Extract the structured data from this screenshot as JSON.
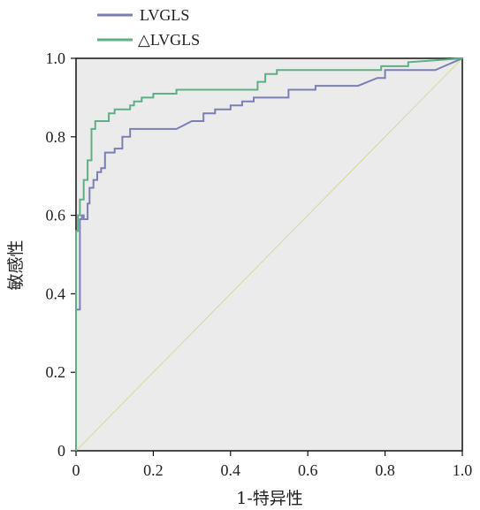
{
  "chart_data": {
    "type": "line",
    "xlabel": "1-特异性",
    "ylabel": "敏感性",
    "xlim": [
      0,
      1
    ],
    "ylim": [
      0,
      1
    ],
    "x_ticks": [
      "0",
      "0.2",
      "0.4",
      "0.6",
      "0.8",
      "1.0"
    ],
    "y_ticks": [
      "0",
      "0.2",
      "0.4",
      "0.6",
      "0.8",
      "1.0"
    ],
    "grid": false,
    "legend_position": "top-left",
    "background_color": "#ebebeb",
    "reference_line": {
      "x": [
        0,
        1
      ],
      "y": [
        0,
        1
      ],
      "color": "#d9d8a0"
    },
    "series": [
      {
        "name": "LVGLS",
        "color": "#7b7fb3",
        "x": [
          0,
          0,
          0.01,
          0.01,
          0.015,
          0.015,
          0.02,
          0.02,
          0.03,
          0.03,
          0.035,
          0.035,
          0.045,
          0.045,
          0.055,
          0.055,
          0.065,
          0.065,
          0.075,
          0.075,
          0.1,
          0.1,
          0.12,
          0.12,
          0.14,
          0.14,
          0.26,
          0.3,
          0.33,
          0.33,
          0.36,
          0.36,
          0.4,
          0.4,
          0.43,
          0.43,
          0.46,
          0.46,
          0.55,
          0.55,
          0.62,
          0.62,
          0.73,
          0.78,
          0.8,
          0.8,
          0.93,
          1.0
        ],
        "y": [
          0,
          0.36,
          0.36,
          0.59,
          0.59,
          0.6,
          0.6,
          0.59,
          0.59,
          0.63,
          0.63,
          0.67,
          0.67,
          0.69,
          0.69,
          0.71,
          0.71,
          0.72,
          0.72,
          0.76,
          0.76,
          0.77,
          0.77,
          0.8,
          0.8,
          0.82,
          0.82,
          0.84,
          0.84,
          0.86,
          0.86,
          0.87,
          0.87,
          0.88,
          0.88,
          0.89,
          0.89,
          0.9,
          0.9,
          0.92,
          0.92,
          0.93,
          0.93,
          0.95,
          0.95,
          0.97,
          0.97,
          1.0
        ]
      },
      {
        "name": "△LVGLS",
        "color": "#5faf86",
        "x": [
          0,
          0,
          0.005,
          0.005,
          0.01,
          0.01,
          0.02,
          0.02,
          0.03,
          0.03,
          0.04,
          0.04,
          0.05,
          0.05,
          0.085,
          0.085,
          0.1,
          0.1,
          0.14,
          0.14,
          0.15,
          0.15,
          0.17,
          0.17,
          0.2,
          0.2,
          0.26,
          0.26,
          0.47,
          0.47,
          0.49,
          0.49,
          0.52,
          0.52,
          0.79,
          0.79,
          0.86,
          0.86,
          1.0
        ],
        "y": [
          0,
          0.56,
          0.56,
          0.6,
          0.6,
          0.64,
          0.64,
          0.69,
          0.69,
          0.74,
          0.74,
          0.82,
          0.82,
          0.84,
          0.84,
          0.86,
          0.86,
          0.87,
          0.87,
          0.88,
          0.88,
          0.89,
          0.89,
          0.9,
          0.9,
          0.91,
          0.91,
          0.92,
          0.92,
          0.94,
          0.94,
          0.96,
          0.96,
          0.97,
          0.97,
          0.98,
          0.98,
          0.99,
          1.0
        ]
      }
    ]
  }
}
